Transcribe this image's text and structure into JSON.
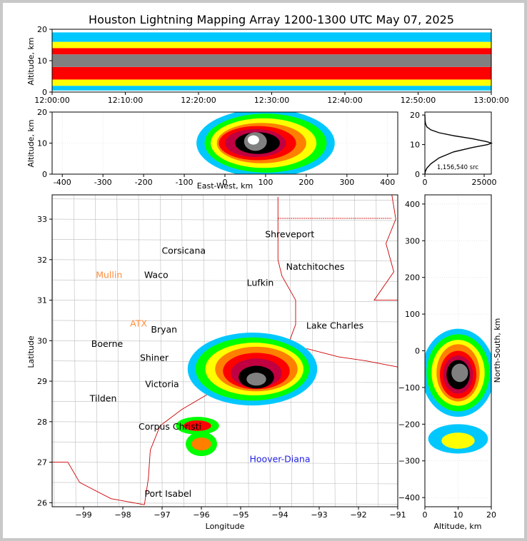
{
  "title": "Houston Lightning Mapping Array 1200-1300 UTC May 07, 2025",
  "source_count_label": "1,156,540 src",
  "colors": {
    "state_border": "#cc0000",
    "county_border": "#bdbdbd",
    "grid": "#d8d8d8"
  },
  "density_colormap": [
    "#ffffff",
    "#8a00ff",
    "#0000ff",
    "#00c8ff",
    "#00ff00",
    "#ffff00",
    "#ff8000",
    "#ff0000",
    "#c00040",
    "#000000",
    "#808080",
    "#ffffff"
  ],
  "chart_data": [
    {
      "type": "heatmap",
      "panel": "altitude-time",
      "ylabel": "Altitude, km",
      "xlim": [
        "12:00:00",
        "13:00:00"
      ],
      "ylim": [
        0,
        20
      ],
      "xticks": [
        "12:00:00",
        "12:10:00",
        "12:20:00",
        "12:30:00",
        "12:40:00",
        "12:50:00",
        "13:00:00"
      ],
      "yticks": [
        0,
        10,
        20
      ],
      "density_bands": [
        {
          "alt_low": 0.5,
          "alt_high": 2,
          "level": 3
        },
        {
          "alt_low": 2,
          "alt_high": 4,
          "level": 5
        },
        {
          "alt_low": 4,
          "alt_high": 8,
          "level": 7
        },
        {
          "alt_low": 8,
          "alt_high": 12,
          "level": 10
        },
        {
          "alt_low": 12,
          "alt_high": 14,
          "level": 7
        },
        {
          "alt_low": 14,
          "alt_high": 16,
          "level": 5
        },
        {
          "alt_low": 16,
          "alt_high": 19,
          "level": 3
        }
      ]
    },
    {
      "type": "heatmap",
      "panel": "east-west-altitude",
      "xlabel": "East-West, km",
      "ylabel": "Altitude, km",
      "xlim": [
        -425,
        425
      ],
      "ylim": [
        0,
        20
      ],
      "xticks": [
        -400,
        -300,
        -200,
        -100,
        0,
        100,
        200,
        300,
        400
      ],
      "yticks": [
        0,
        10,
        20
      ],
      "cells": [
        {
          "x": 100,
          "y": 10,
          "rx": 170,
          "ry": 11,
          "level": 3
        },
        {
          "x": 100,
          "y": 10,
          "rx": 150,
          "ry": 9.5,
          "level": 4
        },
        {
          "x": 95,
          "y": 10,
          "rx": 130,
          "ry": 8,
          "level": 5
        },
        {
          "x": 90,
          "y": 10,
          "rx": 110,
          "ry": 6.5,
          "level": 6
        },
        {
          "x": 80,
          "y": 10,
          "rx": 95,
          "ry": 5.5,
          "level": 7
        },
        {
          "x": 75,
          "y": 10,
          "rx": 75,
          "ry": 4.5,
          "level": 8
        },
        {
          "x": 80,
          "y": 10,
          "rx": 55,
          "ry": 3.5,
          "level": 9
        },
        {
          "x": 75,
          "y": 10.5,
          "rx": 28,
          "ry": 3,
          "level": 10
        },
        {
          "x": 70,
          "y": 11,
          "rx": 14,
          "ry": 1.5,
          "level": 11
        }
      ]
    },
    {
      "type": "line",
      "panel": "altitude-histogram",
      "xlim": [
        0,
        28000
      ],
      "ylim": [
        0,
        21
      ],
      "xticks": [
        0,
        25000
      ],
      "yticks": [
        0,
        10,
        20
      ],
      "series": [
        {
          "x": [
            0,
            200,
            800,
            2500,
            6000,
            12000,
            20000,
            26500,
            28000,
            26000,
            20000,
            12000,
            6000,
            2500,
            800,
            300,
            100,
            0
          ],
          "y": [
            0,
            1,
            2,
            3.5,
            5.5,
            7.5,
            9,
            10,
            10.5,
            11,
            12,
            13,
            14,
            15,
            16,
            17,
            18,
            20
          ]
        }
      ]
    },
    {
      "type": "heatmap",
      "panel": "plan-view",
      "xlabel": "Longitude",
      "ylabel": "Latitude",
      "xlim": [
        -99.8,
        -91
      ],
      "ylim": [
        25.9,
        33.6
      ],
      "xticks": [
        -99,
        -98,
        -97,
        -96,
        -95,
        -94,
        -93,
        -92,
        -91
      ],
      "yticks": [
        26,
        27,
        28,
        29,
        30,
        31,
        32,
        33
      ],
      "cells": [
        {
          "x": -94.7,
          "y": 29.3,
          "rx": 1.65,
          "ry": 0.9,
          "level": 3
        },
        {
          "x": -94.7,
          "y": 29.3,
          "rx": 1.45,
          "ry": 0.78,
          "level": 4
        },
        {
          "x": -94.65,
          "y": 29.3,
          "rx": 1.25,
          "ry": 0.65,
          "level": 5
        },
        {
          "x": -94.6,
          "y": 29.3,
          "rx": 1.05,
          "ry": 0.55,
          "level": 6
        },
        {
          "x": -94.6,
          "y": 29.25,
          "rx": 0.85,
          "ry": 0.45,
          "level": 7
        },
        {
          "x": -94.6,
          "y": 29.2,
          "rx": 0.65,
          "ry": 0.36,
          "level": 8
        },
        {
          "x": -94.6,
          "y": 29.1,
          "rx": 0.45,
          "ry": 0.28,
          "level": 9
        },
        {
          "x": -94.6,
          "y": 29.05,
          "rx": 0.25,
          "ry": 0.16,
          "level": 10
        },
        {
          "x": -96.1,
          "y": 27.9,
          "rx": 0.55,
          "ry": 0.22,
          "level": 4
        },
        {
          "x": -96.1,
          "y": 27.9,
          "rx": 0.35,
          "ry": 0.13,
          "level": 7
        },
        {
          "x": -96.0,
          "y": 27.45,
          "rx": 0.4,
          "ry": 0.3,
          "level": 4
        },
        {
          "x": -96.0,
          "y": 27.45,
          "rx": 0.25,
          "ry": 0.16,
          "level": 6
        }
      ],
      "cities": [
        {
          "name": "Shreveport",
          "lon": -93.75,
          "lat": 32.55,
          "color": "#000000"
        },
        {
          "name": "Corsicana",
          "lon": -96.45,
          "lat": 32.15,
          "color": "#000000"
        },
        {
          "name": "Natchitoches",
          "lon": -93.1,
          "lat": 31.75,
          "color": "#000000"
        },
        {
          "name": "Mullin",
          "lon": -98.35,
          "lat": 31.55,
          "color": "#ff8c3c"
        },
        {
          "name": "Waco",
          "lon": -97.15,
          "lat": 31.55,
          "color": "#000000"
        },
        {
          "name": "Lufkin",
          "lon": -94.5,
          "lat": 31.35,
          "color": "#000000"
        },
        {
          "name": "ATX",
          "lon": -97.6,
          "lat": 30.35,
          "color": "#ff8c3c"
        },
        {
          "name": "Bryan",
          "lon": -96.95,
          "lat": 30.2,
          "color": "#000000"
        },
        {
          "name": "Lake Charles",
          "lon": -92.6,
          "lat": 30.3,
          "color": "#000000"
        },
        {
          "name": "Boerne",
          "lon": -98.4,
          "lat": 29.85,
          "color": "#000000"
        },
        {
          "name": "Shiner",
          "lon": -97.2,
          "lat": 29.5,
          "color": "#000000"
        },
        {
          "name": "Victoria",
          "lon": -97.0,
          "lat": 28.85,
          "color": "#000000"
        },
        {
          "name": "Tilden",
          "lon": -98.5,
          "lat": 28.5,
          "color": "#000000"
        },
        {
          "name": "Corpus Christi",
          "lon": -96.8,
          "lat": 27.8,
          "color": "#000000"
        },
        {
          "name": "Hoover-Diana",
          "lon": -94.0,
          "lat": 27.0,
          "color": "#2020e0"
        },
        {
          "name": "Port Isabel",
          "lon": -96.85,
          "lat": 26.15,
          "color": "#000000"
        }
      ]
    },
    {
      "type": "heatmap",
      "panel": "altitude-north-south",
      "xlabel": "Altitude, km",
      "ylabel": "North-South, km",
      "xlim": [
        0,
        20
      ],
      "ylim": [
        -425,
        425
      ],
      "xticks": [
        0,
        10,
        20
      ],
      "yticks": [
        -400,
        -300,
        -200,
        -100,
        0,
        100,
        200,
        300,
        400
      ],
      "cells": [
        {
          "x": 10,
          "y": -60,
          "rx": 11,
          "ry": 120,
          "level": 3
        },
        {
          "x": 10,
          "y": -60,
          "rx": 9.5,
          "ry": 105,
          "level": 4
        },
        {
          "x": 10,
          "y": -60,
          "rx": 8,
          "ry": 90,
          "level": 5
        },
        {
          "x": 10,
          "y": -60,
          "rx": 6.5,
          "ry": 78,
          "level": 6
        },
        {
          "x": 10,
          "y": -65,
          "rx": 5.5,
          "ry": 65,
          "level": 7
        },
        {
          "x": 10,
          "y": -65,
          "rx": 4.5,
          "ry": 52,
          "level": 8
        },
        {
          "x": 10,
          "y": -65,
          "rx": 3.5,
          "ry": 40,
          "level": 9
        },
        {
          "x": 10.5,
          "y": -60,
          "rx": 2.5,
          "ry": 25,
          "level": 10
        },
        {
          "x": 10,
          "y": -240,
          "rx": 9,
          "ry": 40,
          "level": 3
        },
        {
          "x": 10,
          "y": -245,
          "rx": 5,
          "ry": 22,
          "level": 5
        }
      ]
    }
  ]
}
